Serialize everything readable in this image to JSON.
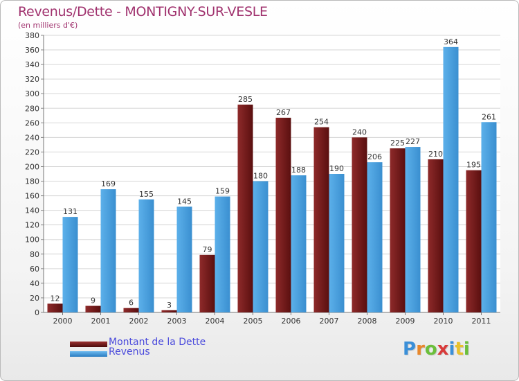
{
  "chart_data": {
    "type": "bar",
    "title": "Revenus/Dette - MONTIGNY-SUR-VESLE",
    "subtitle": "(en milliers d'€)",
    "xlabel": "",
    "ylabel": "",
    "categories": [
      "2000",
      "2001",
      "2002",
      "2003",
      "2004",
      "2005",
      "2006",
      "2007",
      "2008",
      "2009",
      "2010",
      "2011"
    ],
    "series": [
      {
        "name": "Montant de la Dette",
        "color": "#7a1e1e",
        "values": [
          12,
          9,
          6,
          3,
          79,
          285,
          267,
          254,
          240,
          225,
          210,
          195
        ]
      },
      {
        "name": "Revenus",
        "color": "#4aa3e0",
        "values": [
          131,
          169,
          155,
          145,
          159,
          180,
          188,
          190,
          206,
          227,
          364,
          261
        ]
      }
    ],
    "ylim": [
      0,
      380
    ],
    "ytick_step": 20,
    "grid": true,
    "legend_position": "bottom-left"
  },
  "logo": {
    "letters": [
      "P",
      "r",
      "o",
      "x",
      "i",
      "t",
      "i"
    ],
    "colors": [
      "#3a8fd8",
      "#e8872b",
      "#6bbf3b",
      "#d83a3a",
      "#3a8fd8",
      "#e8c12b",
      "#6bbf3b"
    ]
  }
}
